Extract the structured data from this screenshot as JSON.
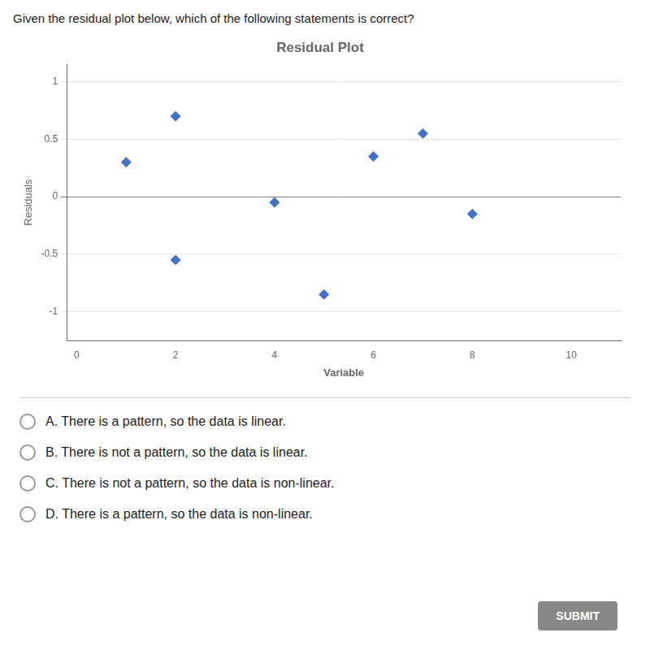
{
  "chart_data": {
    "type": "scatter",
    "title": "Residual Plot",
    "xlabel": "Variable",
    "ylabel": "Residuals",
    "x": [
      1,
      2,
      2,
      4,
      5,
      6,
      7,
      8
    ],
    "values": [
      0.3,
      0.7,
      -0.55,
      -0.05,
      -0.85,
      0.35,
      0.55,
      -0.15
    ],
    "color": "#4472C4",
    "marker": "diamond",
    "xlim": [
      -0.2,
      11
    ],
    "ylim": [
      -1.25,
      1.15
    ],
    "xticks": [
      0,
      2,
      4,
      6,
      8,
      10
    ],
    "yticks": [
      -1,
      -0.5,
      0,
      0.5,
      1
    ],
    "grid": "y",
    "legend": false,
    "annotations": [
      "Given the residual plot below, which of the following statements is correct?",
      "A. There is a pattern, so the data is linear.",
      "B. There is not a pattern, so the data is linear.",
      "C. There is not a pattern, so the data is non-linear.",
      "D. There is a pattern, so the data is non-linear.",
      "SUBMIT"
    ]
  }
}
